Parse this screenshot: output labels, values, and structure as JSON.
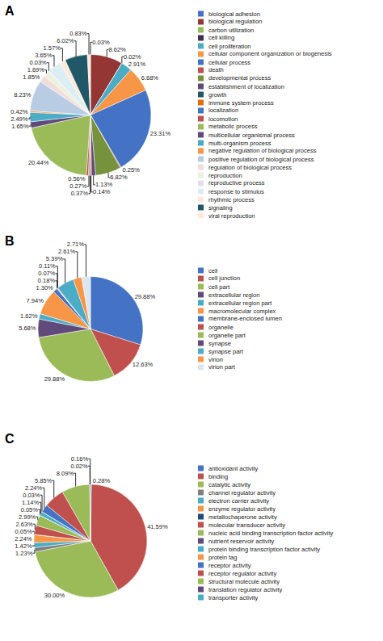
{
  "chart_data": [
    {
      "type": "pie",
      "title": "A",
      "categories": [
        "biological adhesion",
        "biological regulation",
        "carbon utilization",
        "cell killing",
        "cell proliferation",
        "cellular component organization or biogenesis",
        "cellular process",
        "death",
        "developmental process",
        "establishment of localization",
        "growth",
        "immune system process",
        "localization",
        "locomotion",
        "metabolic process",
        "multicellular organismal process",
        "multi-organism process",
        "negative regulation of biological process",
        "positive regulation of biological process",
        "regulation of biological process",
        "reproduction",
        "reproductive process",
        "response to stimulus",
        "rhythmic process",
        "signaling",
        "viral reproduction"
      ],
      "values": [
        0.03,
        8.62,
        0.0,
        0.02,
        2.91,
        6.68,
        23.31,
        0.25,
        6.82,
        1.13,
        0.14,
        0.37,
        0.27,
        0.56,
        20.44,
        1.65,
        2.49,
        0.42,
        8.23,
        1.85,
        1.69,
        0.03,
        3.65,
        1.57,
        6.02,
        0.83
      ],
      "value_labels": [
        "0.03%",
        "8.62%",
        null,
        "0.02%",
        "2.91%",
        "6.68%",
        "23.31%",
        "0.25%",
        "6.82%",
        "1.13%",
        "0.14%",
        "0.37%",
        "0.27%",
        "0.56%",
        "20.44%",
        "1.65%",
        "2.49%",
        "0.42%",
        "8.23%",
        "1.85%",
        "1.69%",
        "0.03%",
        "3.65%",
        "1.57%",
        "6.02%",
        "0.83%"
      ],
      "colors": [
        "#4472c4",
        "#943634",
        "#9bbb59",
        "#403152",
        "#4bacc6",
        "#f79646",
        "#4472c4",
        "#c0504d",
        "#76923c",
        "#604a7b",
        "#215868",
        "#e26b0a",
        "#4472c4",
        "#c0504d",
        "#9bbb59",
        "#604a7b",
        "#4bacc6",
        "#f79646",
        "#b8cce4",
        "#f2dcdb",
        "#ebf1de",
        "#e5dfec",
        "#dbeef3",
        "#fde9d9",
        "#215868",
        "#fde9d9"
      ],
      "data_labels": true,
      "legend": "right"
    },
    {
      "type": "pie",
      "title": "B",
      "categories": [
        "cell",
        "cell junction",
        "cell part",
        "extracellular region",
        "extracellular region part",
        "macromolecular complex",
        "membrane-enclosed lumen",
        "organelle",
        "organelle part",
        "synapse",
        "synapse part",
        "virion",
        "virion part"
      ],
      "values": [
        29.88,
        12.63,
        29.88,
        5.68,
        1.62,
        7.94,
        1.3,
        0.18,
        0.07,
        0.11,
        5.39,
        2.61,
        2.71
      ],
      "value_labels": [
        "29.88%",
        "12.63%",
        "29.88%",
        "5.68%",
        "1.62%",
        "7.94%",
        "1.30%",
        "0.18%",
        "0.07%",
        "0.11%",
        "5.39%",
        "2.61%",
        "2.71%"
      ],
      "colors": [
        "#4472c4",
        "#c0504d",
        "#9bbb59",
        "#604a7b",
        "#4bacc6",
        "#f79646",
        "#4472c4",
        "#c0504d",
        "#9bbb59",
        "#604a7b",
        "#4bacc6",
        "#f79646",
        "#dce6f1"
      ],
      "data_labels": true,
      "legend": "right"
    },
    {
      "type": "pie",
      "title": "C",
      "categories": [
        "antioxidant activity",
        "binding",
        "catalytic activity",
        "channel regulator activity",
        "electron carrier activity",
        "enzyme regulator activity",
        "metallochaperone activity",
        "molecular transducer activity",
        "nucleic acid binding transcription factor activity",
        "nutrient reservoir activity",
        "protein binding transcription factor activity",
        "protein tag",
        "receptor activity",
        "receptor regulator activity",
        "structural molecule activity",
        "translation regulator activity",
        "transporter activity"
      ],
      "values": [
        0.28,
        41.59,
        30.0,
        1.23,
        1.42,
        2.24,
        0.05,
        2.63,
        2.99,
        0.05,
        1.14,
        0.03,
        2.24,
        5.85,
        8.09,
        0.02,
        0.16
      ],
      "value_labels": [
        "0.28%",
        "41.59%",
        "30.00%",
        "1.23%",
        "1.42%",
        "2.24%",
        "0.05%",
        "2.63%",
        "2.99%",
        "0.05%",
        "1.14%",
        "0.03%",
        "2.24%",
        "5.85%",
        "8.09%",
        "0.02%",
        "0.16%"
      ],
      "colors": [
        "#4472c4",
        "#c0504d",
        "#9bbb59",
        "#7f7f7f",
        "#4bacc6",
        "#f79646",
        "#1f497d",
        "#c0504d",
        "#9bbb59",
        "#604a7b",
        "#4bacc6",
        "#f79646",
        "#4472c4",
        "#c0504d",
        "#9bbb59",
        "#604a7b",
        "#4bacc6"
      ],
      "data_labels": true,
      "legend": "right"
    }
  ]
}
